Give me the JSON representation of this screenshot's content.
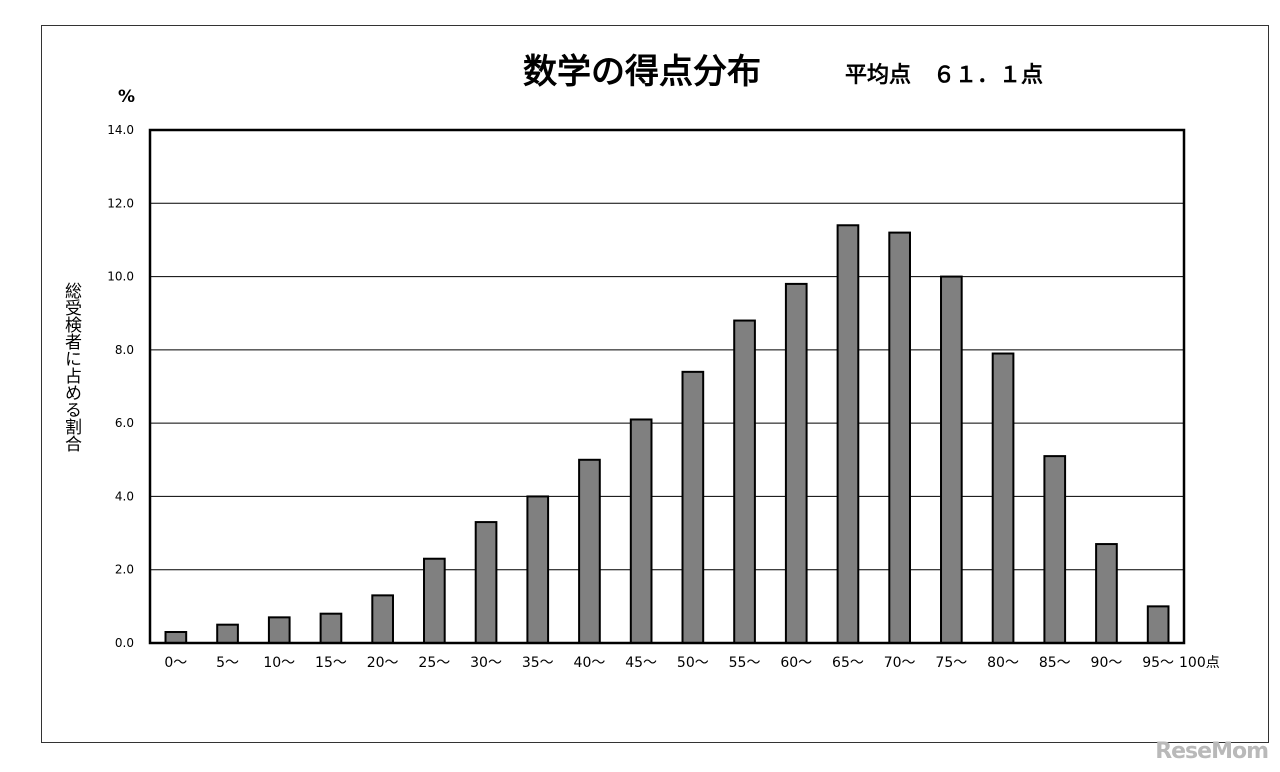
{
  "chart_data": {
    "type": "bar",
    "title": "数学の得点分布",
    "subtitle": "平均点　６１．１点",
    "y_unit": "%",
    "ylabel": "総受検者に占める割合",
    "x_end_label": "100点",
    "ylim": [
      0,
      14
    ],
    "yticks": [
      "0.0",
      "2.0",
      "4.0",
      "6.0",
      "8.0",
      "10.0",
      "12.0",
      "14.0"
    ],
    "grid": true,
    "categories": [
      "0〜",
      "5〜",
      "10〜",
      "15〜",
      "20〜",
      "25〜",
      "30〜",
      "35〜",
      "40〜",
      "45〜",
      "50〜",
      "55〜",
      "60〜",
      "65〜",
      "70〜",
      "75〜",
      "80〜",
      "85〜",
      "90〜",
      "95〜"
    ],
    "values": [
      0.3,
      0.5,
      0.7,
      0.8,
      1.3,
      2.3,
      3.3,
      4.0,
      5.0,
      6.1,
      7.4,
      8.8,
      9.8,
      11.4,
      11.2,
      10.0,
      7.9,
      5.1,
      2.7,
      1.0
    ],
    "bar_color": "#808080"
  },
  "watermark": "ReseMom"
}
